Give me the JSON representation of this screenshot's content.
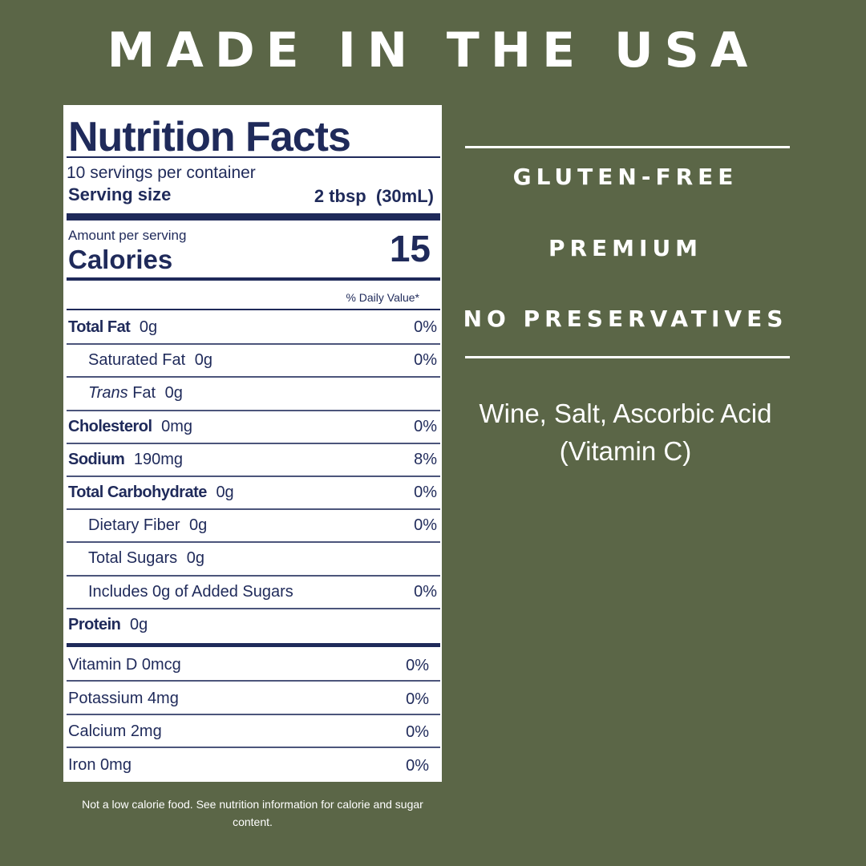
{
  "header": {
    "title": "MADE IN THE USA"
  },
  "label": {
    "title": "Nutrition Facts",
    "servings": "10 servings per container",
    "serving_size_label": "Serving size",
    "serving_size_value": "2 tbsp  (30mL)",
    "amount_per_serving": "Amount per serving",
    "calories_label": "Calories",
    "calories_value": "15",
    "daily_value_header": "% Daily Value*",
    "rows": [
      {
        "name": "Total Fat",
        "amount": "0g",
        "dv": "0%",
        "bold": true
      },
      {
        "name": "Saturated Fat",
        "amount": "0g",
        "dv": "0%",
        "indent": true
      },
      {
        "name_italic": "Trans",
        "name": "Fat",
        "amount": "0g",
        "indent": true
      },
      {
        "name": "Cholesterol",
        "amount": "0mg",
        "dv": "0%",
        "bold": true
      },
      {
        "name": "Sodium",
        "amount": "190mg",
        "dv": "8%",
        "bold": true
      },
      {
        "name": "Total Carbohydrate",
        "amount": "0g",
        "dv": "0%",
        "bold": true
      },
      {
        "name": "Dietary Fiber",
        "amount": "0g",
        "dv": "0%",
        "indent": true
      },
      {
        "name": "Total Sugars",
        "amount": "0g",
        "indent": true
      },
      {
        "name": "Includes 0g of Added Sugars",
        "dv": "0%",
        "indent": true
      },
      {
        "name": "Protein",
        "amount": "0g",
        "bold": true
      }
    ],
    "vitamins": [
      {
        "name": "Vitamin D",
        "amount": "0mcg",
        "dv": "0%"
      },
      {
        "name": "Potassium",
        "amount": "4mg",
        "dv": "0%"
      },
      {
        "name": "Calcium",
        "amount": "2mg",
        "dv": "0%"
      },
      {
        "name": "Iron",
        "amount": "0mg",
        "dv": "0%"
      }
    ]
  },
  "footnote": "Not a low calorie food. See nutrition information for calorie and sugar content.",
  "claims": [
    "GLUTEN-FREE",
    "PREMIUM",
    "NO PRESERVATIVES"
  ],
  "ingredients": "Wine, Salt, Ascorbic Acid (Vitamin C)"
}
